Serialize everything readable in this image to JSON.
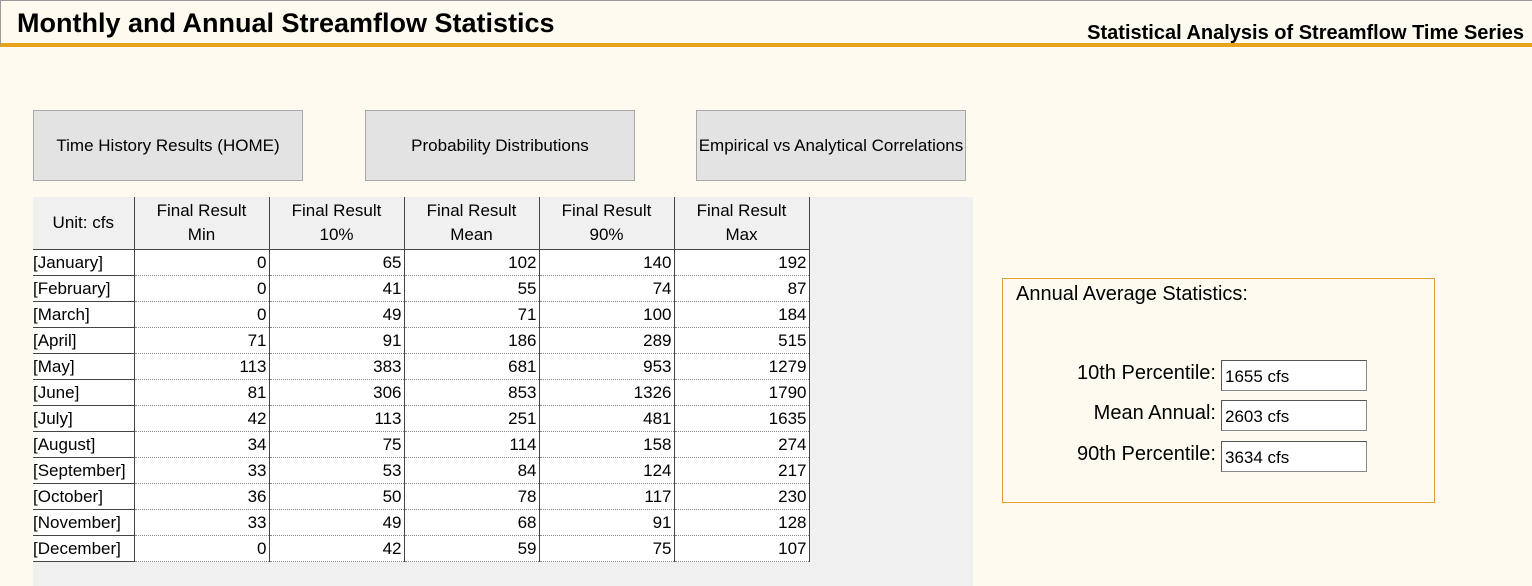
{
  "header": {
    "title": "Monthly and Annual Streamflow Statistics",
    "subtitle": "Statistical Analysis of Streamflow Time Series"
  },
  "nav": {
    "home_label": "Time History Results (HOME)",
    "prob_label": "Probability Distributions",
    "corr_label": "Empirical vs Analytical Correlations"
  },
  "table": {
    "unit_label": "Unit: cfs",
    "columns": [
      {
        "line1": "Final Result",
        "line2": "Min"
      },
      {
        "line1": "Final Result",
        "line2": "10%"
      },
      {
        "line1": "Final Result",
        "line2": "Mean"
      },
      {
        "line1": "Final Result",
        "line2": "90%"
      },
      {
        "line1": "Final Result",
        "line2": "Max"
      }
    ],
    "rows": [
      {
        "month": "[January]",
        "values": [
          "0",
          "65",
          "102",
          "140",
          "192"
        ]
      },
      {
        "month": "[February]",
        "values": [
          "0",
          "41",
          "55",
          "74",
          "87"
        ]
      },
      {
        "month": "[March]",
        "values": [
          "0",
          "49",
          "71",
          "100",
          "184"
        ]
      },
      {
        "month": "[April]",
        "values": [
          "71",
          "91",
          "186",
          "289",
          "515"
        ]
      },
      {
        "month": "[May]",
        "values": [
          "113",
          "383",
          "681",
          "953",
          "1279"
        ]
      },
      {
        "month": "[June]",
        "values": [
          "81",
          "306",
          "853",
          "1326",
          "1790"
        ]
      },
      {
        "month": "[July]",
        "values": [
          "42",
          "113",
          "251",
          "481",
          "1635"
        ]
      },
      {
        "month": "[August]",
        "values": [
          "34",
          "75",
          "114",
          "158",
          "274"
        ]
      },
      {
        "month": "[September]",
        "values": [
          "33",
          "53",
          "84",
          "124",
          "217"
        ]
      },
      {
        "month": "[October]",
        "values": [
          "36",
          "50",
          "78",
          "117",
          "230"
        ]
      },
      {
        "month": "[November]",
        "values": [
          "33",
          "49",
          "68",
          "91",
          "128"
        ]
      },
      {
        "month": "[December]",
        "values": [
          "0",
          "42",
          "59",
          "75",
          "107"
        ]
      }
    ]
  },
  "annual": {
    "title": "Annual Average Statistics:",
    "p10_label": "10th Percentile:",
    "p10_value": "1655 cfs",
    "mean_label": "Mean Annual:",
    "mean_value": "2603 cfs",
    "p90_label": "90th Percentile:",
    "p90_value": "3634 cfs"
  },
  "colors": {
    "accent": "#e8a21c",
    "background": "#fffaf0",
    "button": "#e3e3e3"
  }
}
